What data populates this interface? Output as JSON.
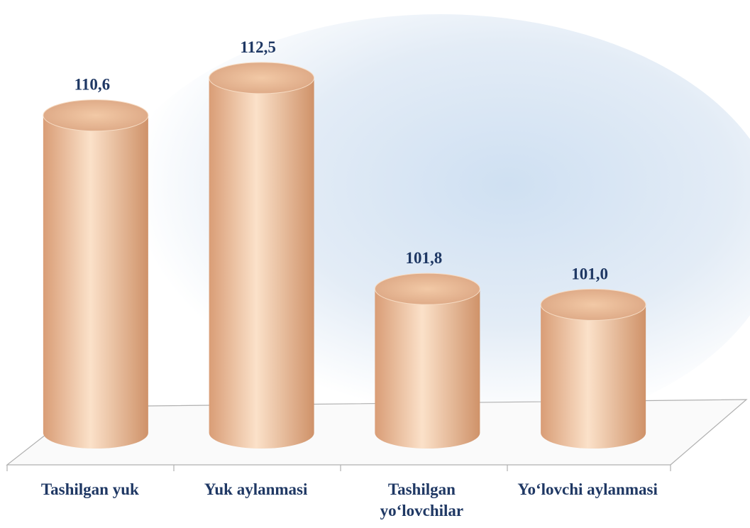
{
  "chart_data": {
    "type": "cylinder-bar",
    "categories": [
      "Tashilgan yuk",
      "Yuk aylanmasi",
      "Tashilgan yo‘lovchilar",
      "Yo‘lovchi aylanmasi"
    ],
    "values": [
      110.6,
      112.5,
      101.8,
      101.0
    ],
    "value_labels": [
      "110,6",
      "112,5",
      "101,8",
      "101,0"
    ],
    "ylim": [
      94.5,
      113
    ]
  }
}
